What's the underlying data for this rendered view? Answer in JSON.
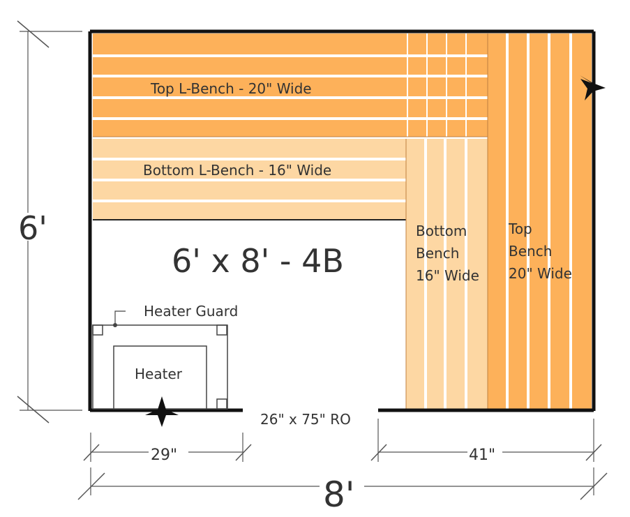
{
  "plan": {
    "title": "6' x 8' - 4B",
    "top_l_bench": "Top L-Bench - 20\" Wide",
    "bottom_l_bench": "Bottom L-Bench - 16\" Wide",
    "bottom_bench": [
      "Bottom",
      "Bench",
      "16\" Wide"
    ],
    "top_bench": [
      "Top",
      "Bench",
      "20\" Wide"
    ],
    "heater_guard": "Heater Guard",
    "heater": "Heater",
    "door_opening": "26\" x 75\" RO"
  },
  "dimensions": {
    "height": "6'",
    "width": "8'",
    "left_wall": "29\"",
    "right_wall": "41\""
  },
  "colors": {
    "top_bench": "#FDB15A",
    "bottom_bench": "#FDD7A3",
    "wall": "#111111",
    "gap": "#ffffff"
  },
  "icons": {
    "door_star": "star-icon",
    "light_star": "star-icon"
  }
}
